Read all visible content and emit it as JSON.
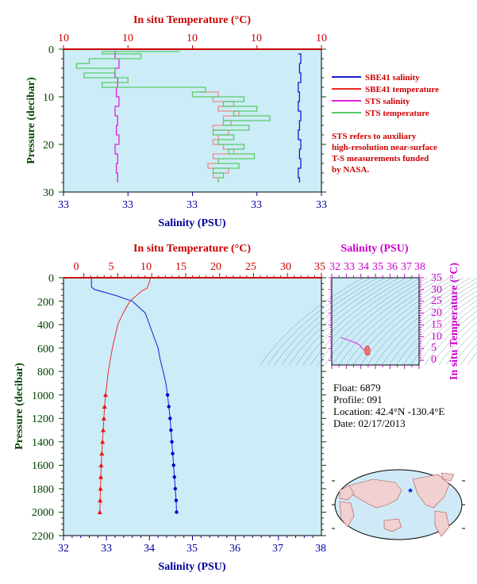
{
  "colors": {
    "salinity_sbe": "#1a1acc",
    "temperature_sbe": "#ee2a2a",
    "salinity_sts": "#dd22dd",
    "temperature_sts": "#55cc66",
    "temperature_sts_pink": "#f08888",
    "plot_bg": "#ccecf7",
    "red_axis": "#cc0000",
    "blue_axis": "#000099",
    "green_axis": "#004400",
    "magenta_axis": "#cc00cc"
  },
  "top_chart": {
    "top_axis_title": "In situ Temperature (°C)",
    "top_tick_labels": [
      "10",
      "10",
      "10",
      "10",
      "10"
    ],
    "bottom_axis_title": "Salinity (PSU)",
    "bottom_tick_labels": [
      "33",
      "33",
      "33",
      "33",
      "33"
    ],
    "left_axis_title": "Pressure (decibar)",
    "left_tick_labels": [
      "0",
      "10",
      "20",
      "30"
    ]
  },
  "legend": {
    "items": [
      {
        "label": "SBE41 salinity",
        "color": "#1a1acc"
      },
      {
        "label": "SBE41 temperature",
        "color": "#ee2a2a"
      },
      {
        "label": "STS salinity",
        "color": "#dd22dd"
      },
      {
        "label": "STS temperature",
        "color": "#55cc66"
      }
    ],
    "note_lines": [
      "STS refers to auxiliary",
      "high-resolution near-surface",
      "T-S measurements funded",
      "by NASA."
    ]
  },
  "main_chart": {
    "top_axis_title": "In situ Temperature (°C)",
    "bottom_axis_title": "Salinity (PSU)",
    "left_axis_title": "Pressure (decibar)",
    "top_tick_labels": [
      "0",
      "5",
      "10",
      "15",
      "20",
      "25",
      "30",
      "35"
    ],
    "bottom_tick_labels": [
      "32",
      "33",
      "34",
      "35",
      "36",
      "37",
      "38"
    ],
    "left_tick_labels": [
      "0",
      "200",
      "400",
      "600",
      "800",
      "1000",
      "1200",
      "1400",
      "1600",
      "1800",
      "2000",
      "2200"
    ]
  },
  "ts_chart": {
    "top_axis_title": "Salinity (PSU)",
    "top_tick_labels": [
      "32",
      "33",
      "34",
      "35",
      "36",
      "37",
      "38"
    ],
    "right_axis_title": "In situ Temperature (°C)",
    "right_tick_labels": [
      "0",
      "5",
      "10",
      "15",
      "20",
      "25",
      "30",
      "35"
    ]
  },
  "info": {
    "float": "Float:  6879",
    "profile": "Profile:  091",
    "location": "Location:  42.4°N  -130.4°E",
    "date": "Date:  02/17/2013"
  },
  "chart_data": [
    {
      "type": "line",
      "title": "",
      "x_top_label": "In situ Temperature (°C)",
      "x_bottom_label": "Salinity (PSU)",
      "ylabel": "Pressure (decibar)",
      "ylim": [
        30,
        0
      ],
      "series": [
        {
          "name": "SBE41 salinity",
          "pressure": [
            1,
            3,
            5,
            7,
            9,
            11,
            13,
            15,
            17,
            19,
            21,
            23,
            25,
            27,
            28
          ],
          "x_frac": [
            0.91,
            0.92,
            0.915,
            0.92,
            0.91,
            0.915,
            0.91,
            0.92,
            0.915,
            0.91,
            0.92,
            0.915,
            0.92,
            0.91,
            0.915
          ]
        },
        {
          "name": "SBE41 temperature",
          "pressure": [
            9,
            10,
            11,
            12,
            13,
            14,
            15,
            16,
            17,
            18,
            19,
            20,
            21,
            22,
            23,
            24,
            25,
            26,
            27,
            28
          ],
          "x_frac": [
            0.52,
            0.6,
            0.58,
            0.66,
            0.6,
            0.68,
            0.62,
            0.65,
            0.58,
            0.64,
            0.6,
            0.58,
            0.62,
            0.66,
            0.58,
            0.6,
            0.56,
            0.64,
            0.58,
            0.6
          ]
        },
        {
          "name": "STS salinity",
          "pressure": [
            0.5,
            2,
            4,
            6,
            8,
            10,
            12,
            14,
            16,
            18,
            20,
            22,
            24,
            26,
            28
          ],
          "x_frac": [
            0.21,
            0.2,
            0.215,
            0.2,
            0.21,
            0.205,
            0.215,
            0.2,
            0.21,
            0.205,
            0.215,
            0.2,
            0.21,
            0.205,
            0.21
          ]
        },
        {
          "name": "STS temperature",
          "pressure": [
            0.5,
            1,
            2,
            3,
            4,
            5,
            6,
            7,
            8,
            9,
            10,
            11,
            12,
            13,
            14,
            15,
            16,
            17,
            18,
            19,
            20,
            21,
            22,
            23,
            24,
            25,
            26,
            27,
            28
          ],
          "x_frac": [
            0.45,
            0.15,
            0.3,
            0.1,
            0.05,
            0.2,
            0.08,
            0.25,
            0.15,
            0.55,
            0.5,
            0.7,
            0.62,
            0.75,
            0.66,
            0.8,
            0.62,
            0.72,
            0.58,
            0.66,
            0.6,
            0.7,
            0.64,
            0.74,
            0.6,
            0.68,
            0.58,
            0.62,
            0.6
          ]
        }
      ]
    },
    {
      "type": "line",
      "title": "",
      "x_top_label": "In situ Temperature (°C)",
      "x_top_lim": [
        0,
        35
      ],
      "x_bottom_label": "Salinity (PSU)",
      "x_bottom_lim": [
        32,
        38
      ],
      "ylabel": "Pressure (decibar)",
      "ylim": [
        2200,
        0
      ],
      "series": [
        {
          "name": "Temperature",
          "axis": "top",
          "pressure": [
            0,
            50,
            90,
            110,
            150,
            200,
            300,
            400,
            500,
            600,
            700,
            800,
            900,
            1000,
            1100,
            1200,
            1300,
            1400,
            1500,
            1600,
            1700,
            1800,
            1900,
            2000
          ],
          "value": [
            9.8,
            9.6,
            9.3,
            8.6,
            7.8,
            6.8,
            5.8,
            5.0,
            4.6,
            4.2,
            3.9,
            3.6,
            3.4,
            3.2,
            3.05,
            2.95,
            2.85,
            2.75,
            2.65,
            2.55,
            2.5,
            2.45,
            2.4,
            2.35
          ]
        },
        {
          "name": "Salinity",
          "axis": "bottom",
          "pressure": [
            0,
            80,
            100,
            150,
            200,
            300,
            400,
            500,
            600,
            700,
            800,
            900,
            1000,
            1100,
            1200,
            1300,
            1400,
            1500,
            1600,
            1700,
            1800,
            1900,
            2000
          ],
          "value": [
            32.65,
            32.65,
            32.72,
            33.2,
            33.6,
            33.9,
            34.0,
            34.1,
            34.2,
            34.25,
            34.32,
            34.38,
            34.42,
            34.45,
            34.48,
            34.5,
            34.52,
            34.54,
            34.56,
            34.58,
            34.6,
            34.62,
            34.63
          ]
        }
      ]
    },
    {
      "type": "line",
      "title": "",
      "xlabel": "Salinity (PSU)",
      "xlim": [
        32,
        38
      ],
      "ylabel": "In situ Temperature (°C)",
      "ylim": [
        -2,
        35
      ],
      "series": [
        {
          "name": "T-S",
          "salinity": [
            32.65,
            32.7,
            33.2,
            33.6,
            33.9,
            34.0,
            34.1,
            34.2,
            34.3,
            34.4,
            34.5,
            34.6,
            34.6,
            34.5
          ],
          "temperature": [
            9.8,
            9.5,
            8.5,
            7.5,
            6.5,
            5.8,
            5.0,
            4.6,
            4.2,
            3.6,
            3.0,
            2.5,
            4.5,
            5.8
          ]
        }
      ]
    }
  ]
}
